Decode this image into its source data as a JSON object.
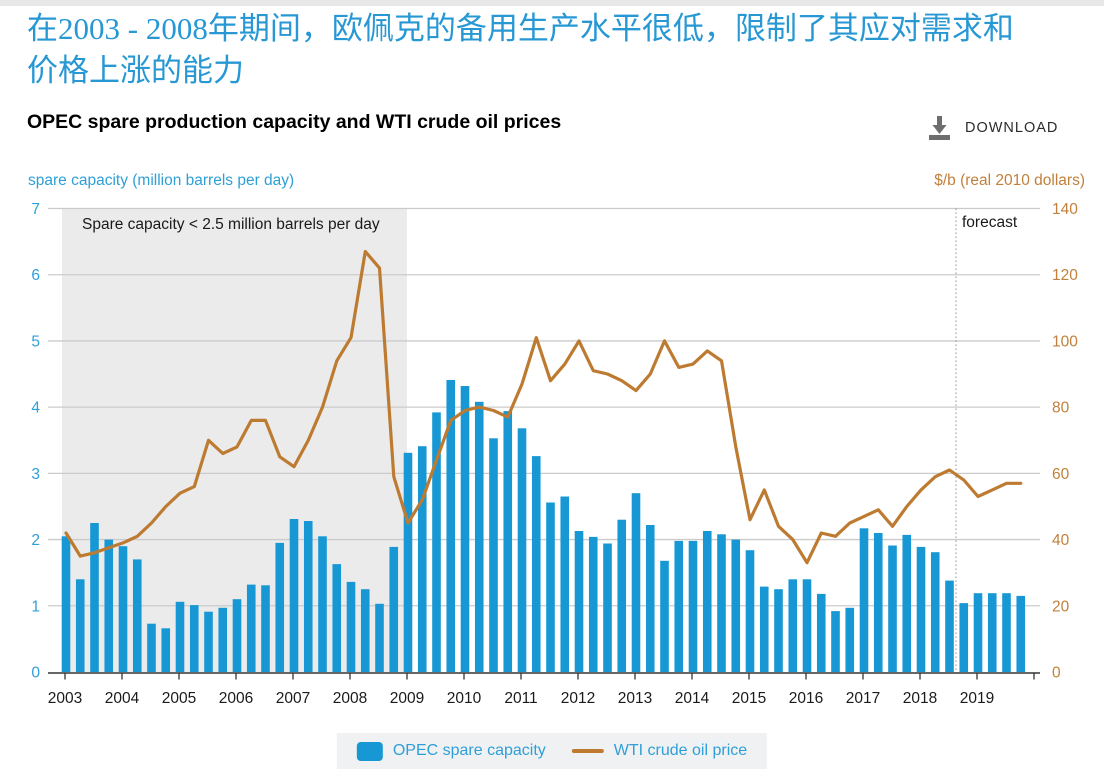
{
  "header": {
    "title_zh_line1": "在2003 - 2008年期间，欧佩克的备用生产水平很低，限制了其应对需求和",
    "title_zh_line2": "价格上涨的能力",
    "chart_title": "OPEC spare production capacity and WTI crude oil prices",
    "download_label": "DOWNLOAD"
  },
  "axes": {
    "left_title": "spare capacity (million barrels per day)",
    "right_title": "$/b (real 2010 dollars)",
    "left_ticks": [
      7,
      6,
      5,
      4,
      3,
      2,
      1,
      0
    ],
    "right_ticks": [
      140,
      120,
      100,
      80,
      60,
      40,
      20,
      0
    ]
  },
  "annotations": {
    "shaded_label": "Spare capacity < 2.5 million barrels per day",
    "forecast_label": "forecast"
  },
  "legend": {
    "bar_label": "OPEC spare capacity",
    "line_label": "WTI crude oil price"
  },
  "colors": {
    "bar_blue": "#1798d5",
    "line_brown": "#bd7b31",
    "title_blue": "#2798d4",
    "left_axis_blue": "#2f9fd8",
    "right_axis_orange": "#c1803b",
    "shade_gray": "#ebebeb",
    "gridline_gray": "#cbcbcb",
    "axis_dark": "#333333",
    "forecast_line_gray": "#909090"
  },
  "chart_data": {
    "type": "bar",
    "subtype": "combo-bar-line",
    "frequency": "quarterly",
    "years": [
      2003,
      2004,
      2005,
      2006,
      2007,
      2008,
      2009,
      2010,
      2011,
      2012,
      2013,
      2014,
      2015,
      2016,
      2017,
      2018,
      2019
    ],
    "series": [
      {
        "name": "OPEC spare capacity",
        "type": "bar",
        "axis": "left",
        "unit": "million barrels per day",
        "values": [
          2.05,
          1.4,
          2.25,
          2.0,
          1.9,
          1.7,
          0.73,
          0.66,
          1.06,
          1.01,
          0.91,
          0.97,
          1.1,
          1.32,
          1.31,
          1.95,
          2.31,
          2.28,
          2.05,
          1.63,
          1.36,
          1.25,
          1.03,
          1.89,
          3.31,
          3.41,
          3.92,
          4.41,
          4.32,
          4.08,
          3.53,
          3.94,
          3.68,
          3.26,
          2.56,
          2.65,
          2.13,
          2.04,
          1.94,
          2.3,
          2.7,
          2.22,
          1.68,
          1.98,
          1.98,
          2.13,
          2.08,
          2.0,
          1.84,
          1.29,
          1.25,
          1.4,
          1.4,
          1.18,
          0.92,
          0.97,
          2.17,
          2.1,
          1.91,
          2.07,
          1.89,
          1.81,
          1.38,
          1.04,
          1.19,
          1.19,
          1.19,
          1.15
        ]
      },
      {
        "name": "WTI crude oil price",
        "type": "line",
        "axis": "right",
        "unit": "$/b (real 2010 dollars)",
        "values": [
          42,
          35,
          36,
          37.5,
          39,
          41,
          45,
          50,
          54,
          56,
          70,
          66,
          68,
          76,
          76,
          65,
          62,
          70,
          80,
          94,
          101,
          127,
          122,
          59,
          45,
          52,
          64,
          76,
          79,
          80,
          79,
          77,
          87,
          101,
          88,
          93,
          100,
          91,
          90,
          88,
          85,
          90,
          100,
          92,
          93,
          97,
          94,
          68,
          46,
          55,
          44,
          40,
          33,
          42,
          41,
          45,
          47,
          49,
          44,
          50,
          55,
          59,
          61,
          58,
          53,
          55,
          57,
          57
        ]
      }
    ],
    "left_axis_range": [
      0,
      7
    ],
    "right_axis_range": [
      0,
      140
    ],
    "grid": true,
    "legend_position": "bottom-center",
    "shaded_region": {
      "from_year": 2003,
      "to_year": 2009,
      "label": "Spare capacity < 2.5 million barrels per day"
    },
    "forecast_boundary": "after 2018 Q3",
    "forecast_label": "forecast"
  }
}
